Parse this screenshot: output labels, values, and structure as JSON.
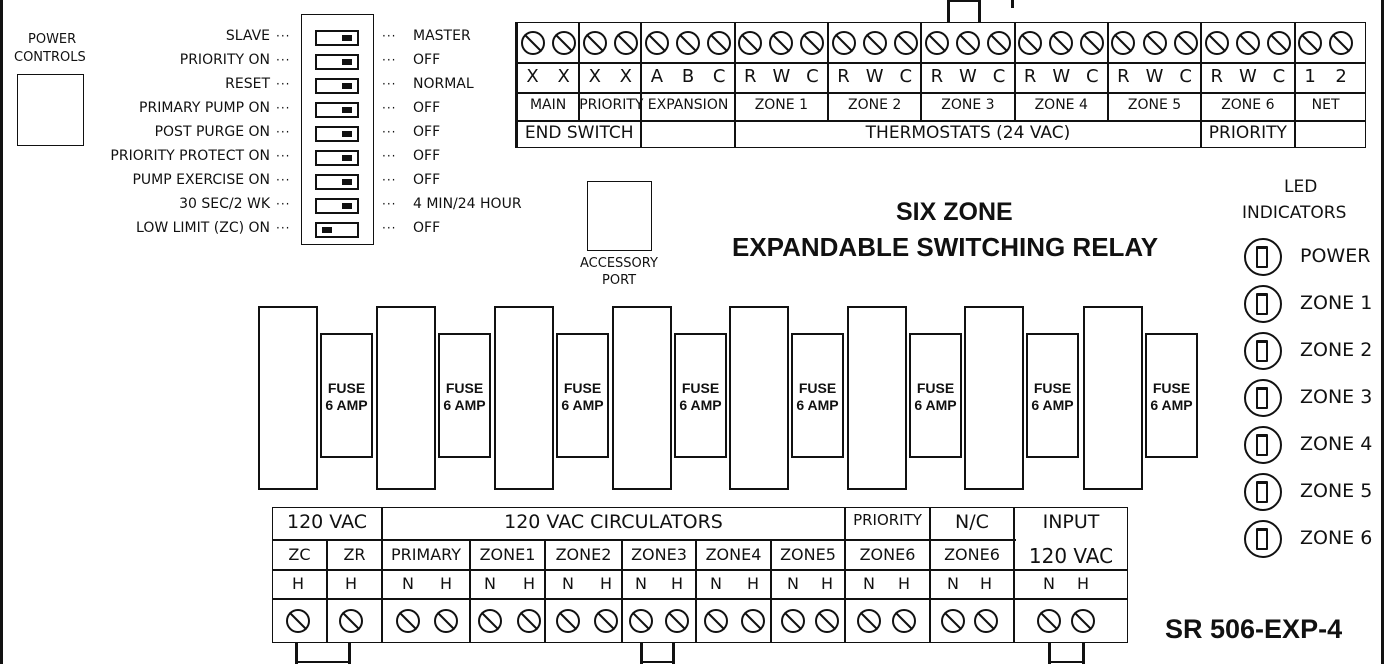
{
  "power_controls": {
    "label_line1": "POWER",
    "label_line2": "CONTROLS"
  },
  "dip_switches": [
    {
      "left": "SLAVE",
      "right": "MASTER",
      "knob": "right"
    },
    {
      "left": "PRIORITY ON",
      "right": "OFF",
      "knob": "right"
    },
    {
      "left": "RESET",
      "right": "NORMAL",
      "knob": "right"
    },
    {
      "left": "PRIMARY PUMP ON",
      "right": "OFF",
      "knob": "right"
    },
    {
      "left": "POST PURGE ON",
      "right": "OFF",
      "knob": "right"
    },
    {
      "left": "PRIORITY PROTECT ON",
      "right": "OFF",
      "knob": "right"
    },
    {
      "left": "PUMP EXERCISE ON",
      "right": "OFF",
      "knob": "right"
    },
    {
      "left": "30 SEC/2 WK",
      "right": "4 MIN/24 HOUR",
      "knob": "right"
    },
    {
      "left": "LOW LIMIT (ZC) ON",
      "right": "OFF",
      "knob": "left"
    }
  ],
  "dash_glyph": "···",
  "top_terminals": {
    "letters": [
      "X",
      "X",
      "X",
      "X",
      "A",
      "B",
      "C",
      "R",
      "W",
      "C",
      "R",
      "W",
      "C",
      "R",
      "W",
      "C",
      "R",
      "W",
      "C",
      "R",
      "W",
      "C",
      "R",
      "W",
      "C",
      "1",
      "2"
    ],
    "groups": [
      "MAIN",
      "PRIORITY",
      "EXPANSION",
      "ZONE 1",
      "ZONE 2",
      "ZONE 3",
      "ZONE 4",
      "ZONE 5",
      "ZONE 6",
      "NET"
    ],
    "end_switch": "END SWITCH",
    "thermostats": "THERMOSTATS (24 VAC)",
    "priority": "PRIORITY"
  },
  "accessory_port": {
    "line1": "ACCESSORY",
    "line2": "PORT"
  },
  "title": {
    "line1": "SIX ZONE",
    "line2": "EXPANDABLE SWITCHING RELAY"
  },
  "fuses": [
    {
      "line1": "FUSE",
      "line2": "6 AMP"
    },
    {
      "line1": "FUSE",
      "line2": "6 AMP"
    },
    {
      "line1": "FUSE",
      "line2": "6 AMP"
    },
    {
      "line1": "FUSE",
      "line2": "6 AMP"
    },
    {
      "line1": "FUSE",
      "line2": "6 AMP"
    },
    {
      "line1": "FUSE",
      "line2": "6 AMP"
    },
    {
      "line1": "FUSE",
      "line2": "6 AMP"
    },
    {
      "line1": "FUSE",
      "line2": "6 AMP"
    }
  ],
  "led_indicators": {
    "heading_line1": "LED",
    "heading_line2": "INDICATORS",
    "items": [
      "POWER",
      "ZONE 1",
      "ZONE 2",
      "ZONE 3",
      "ZONE 4",
      "ZONE 5",
      "ZONE 6"
    ]
  },
  "bottom_terminals": {
    "h_120vac": "120 VAC",
    "h_circulators": "120 VAC CIRCULATORS",
    "h_priority": "PRIORITY",
    "h_nc": "N/C",
    "h_input1": "INPUT",
    "h_input2": "120 VAC",
    "groups": [
      "ZC",
      "ZR",
      "PRIMARY",
      "ZONE1",
      "ZONE2",
      "ZONE3",
      "ZONE4",
      "ZONE5",
      "ZONE6",
      "ZONE6"
    ],
    "pins": [
      "H",
      "H",
      "N",
      "H",
      "N",
      "H",
      "N",
      "H",
      "N",
      "H",
      "N",
      "H",
      "N",
      "H",
      "N",
      "H",
      "N",
      "H",
      "N",
      "H"
    ]
  },
  "model": "SR 506-EXP-4"
}
